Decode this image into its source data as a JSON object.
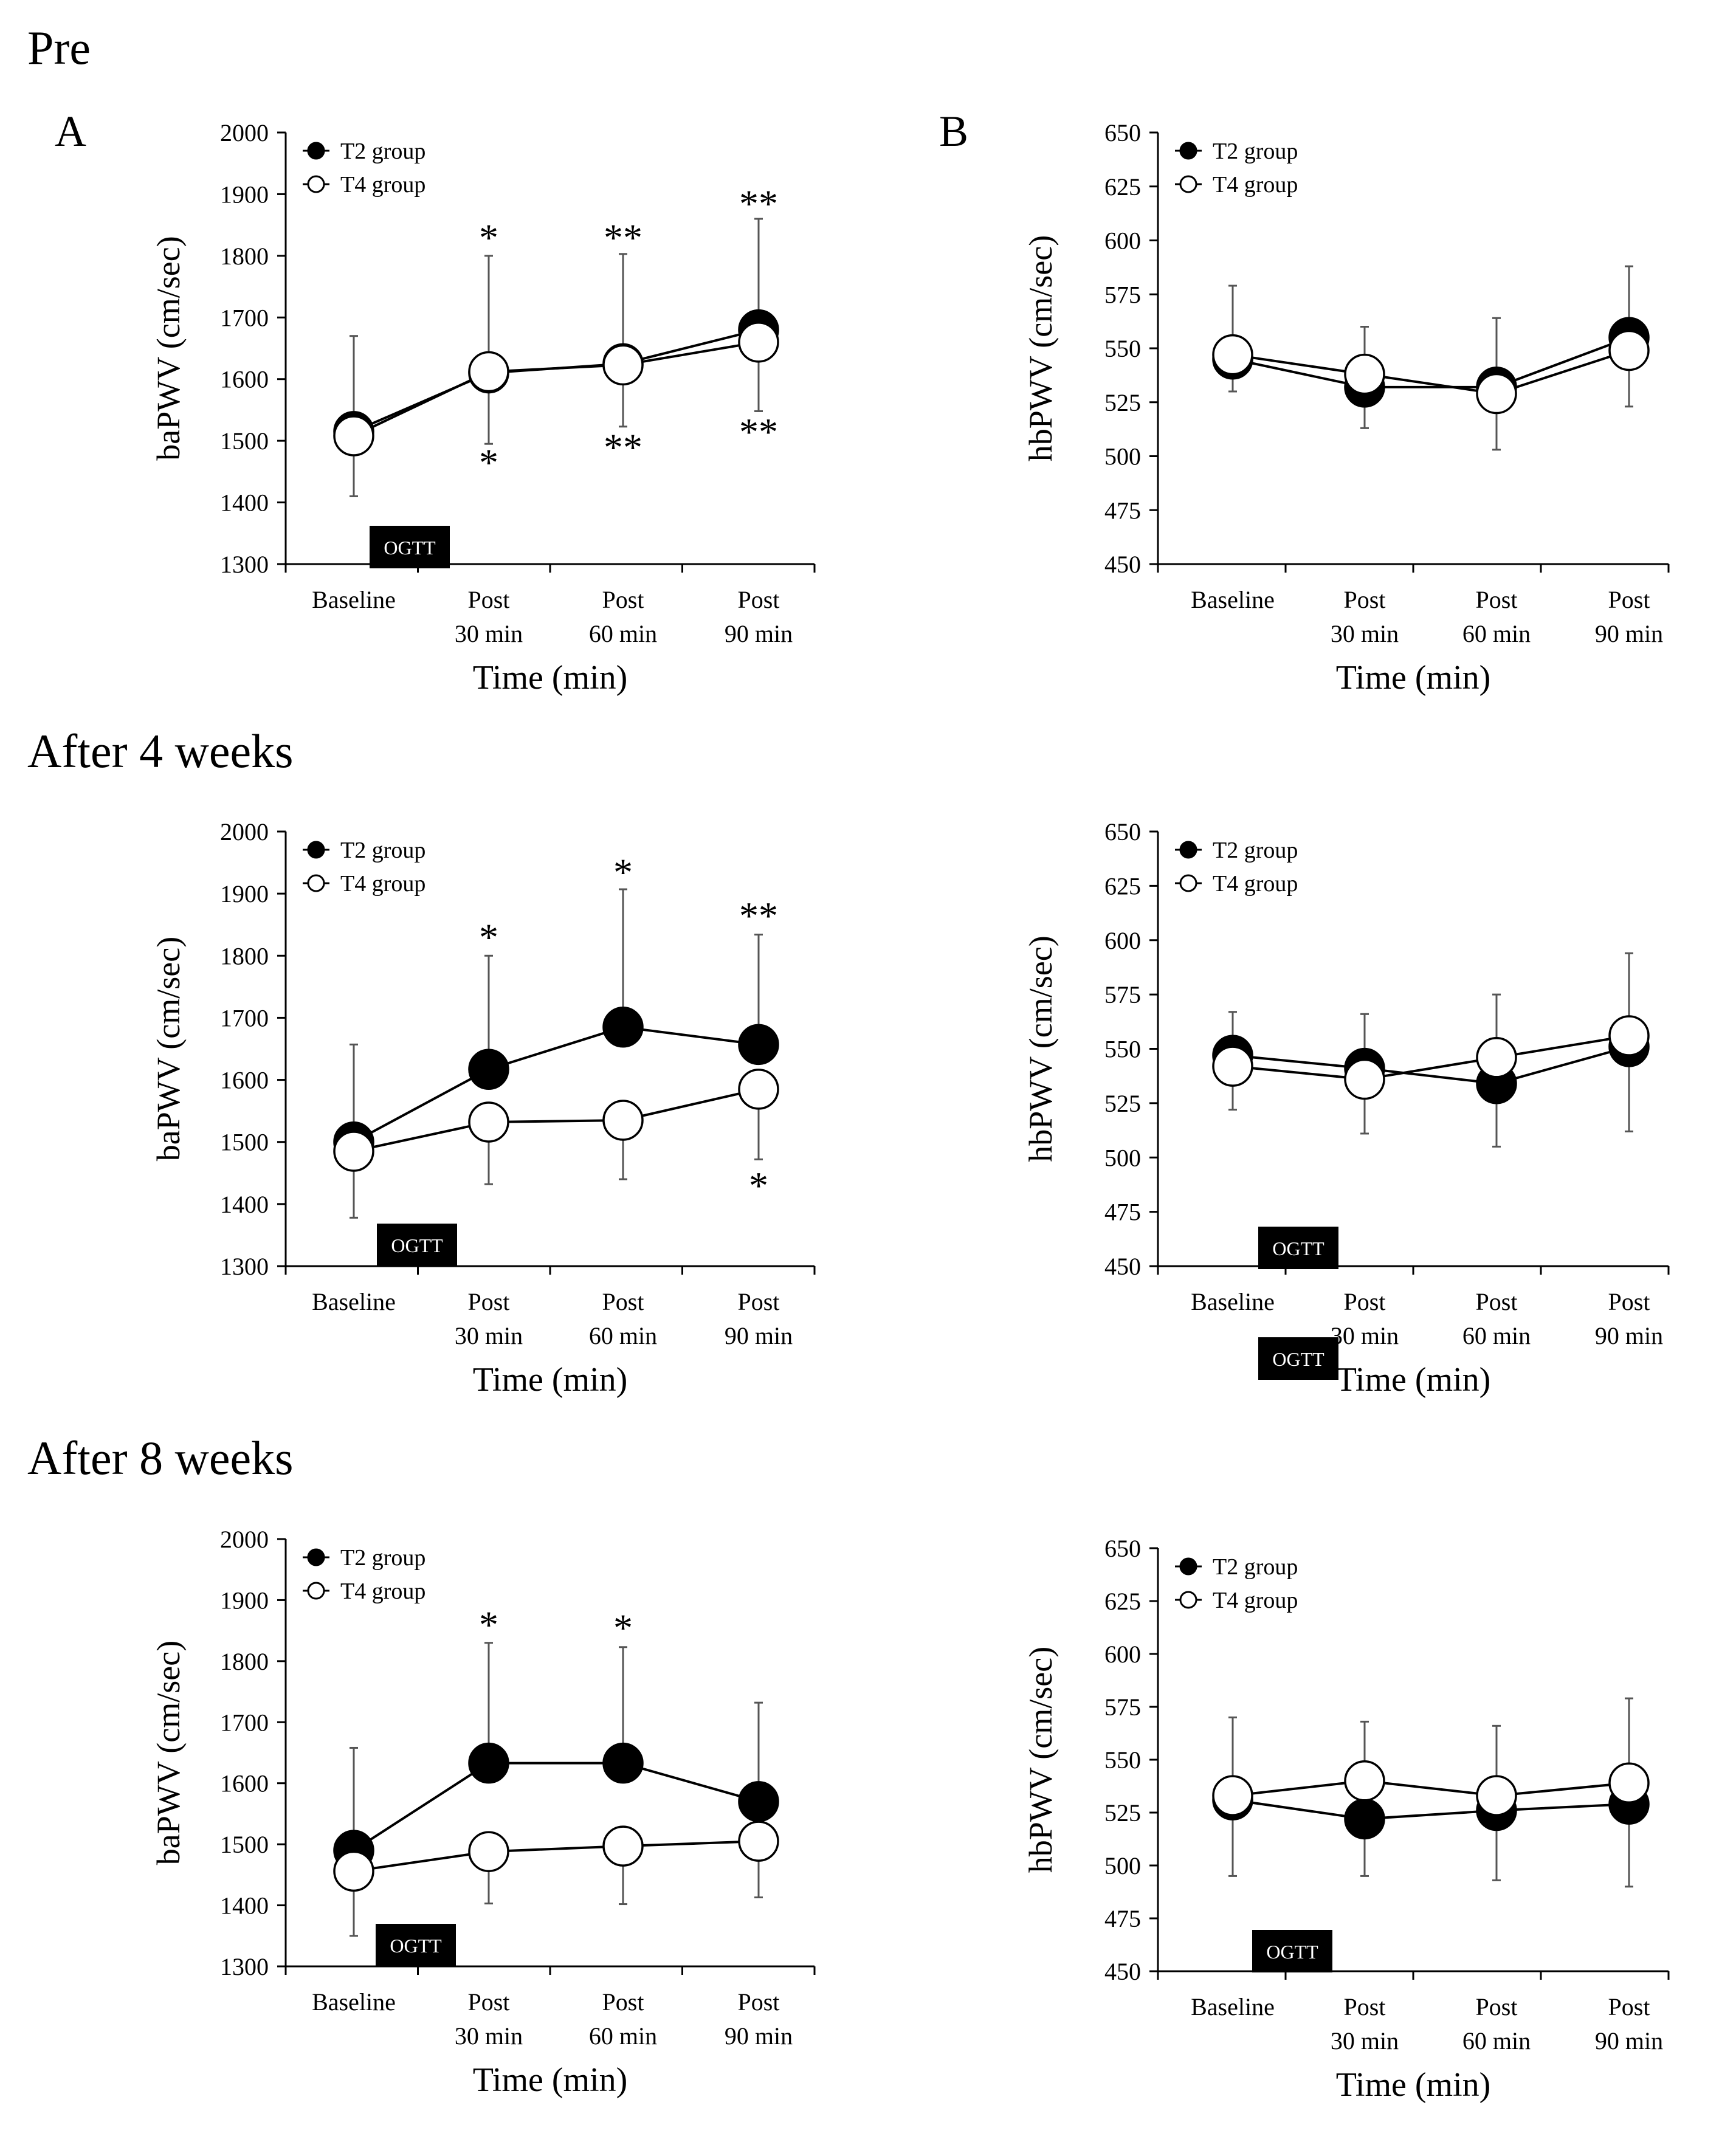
{
  "sections": [
    {
      "title": "Pre"
    },
    {
      "title": "After 4 weeks"
    },
    {
      "title": "After 8 weeks"
    }
  ],
  "panel_labels": [
    "A",
    "B"
  ],
  "legend": {
    "t2": "T2 group",
    "t4": "T4 group"
  },
  "ogtt_label": "OGTT",
  "x_axis": {
    "title": "Time (min)",
    "tick_lines": [
      [
        "Baseline",
        ""
      ],
      [
        "Post",
        "30 min"
      ],
      [
        "Post",
        "60 min"
      ],
      [
        "Post",
        "90 min"
      ]
    ]
  },
  "colors": {
    "t2_fill": "#000000",
    "t4_fill": "#ffffff",
    "axis": "#000000",
    "error_bar": "#555555"
  },
  "chart_data": [
    {
      "id": "pre-ba",
      "type": "line",
      "ylabel": "baPWV (cm/sec)",
      "ylim": [
        1300,
        2000
      ],
      "yticks": [
        1300,
        1400,
        1500,
        1600,
        1700,
        1800,
        1900,
        2000
      ],
      "categories": [
        "Baseline",
        "Post 30 min",
        "Post 60 min",
        "Post 90 min"
      ],
      "series": [
        {
          "name": "T2 group",
          "values": [
            1515,
            1610,
            1625,
            1680
          ],
          "err_up": [
            155,
            190,
            178,
            180
          ]
        },
        {
          "name": "T4 group",
          "values": [
            1508,
            1612,
            1623,
            1660
          ],
          "err_down": [
            98,
            117,
            100,
            112
          ]
        }
      ],
      "annotations": [
        {
          "category": 1,
          "y": 1830,
          "text": "*"
        },
        {
          "category": 2,
          "y": 1830,
          "text": "**"
        },
        {
          "category": 3,
          "y": 1885,
          "text": "**"
        },
        {
          "category": 1,
          "y": 1465,
          "text": "*"
        },
        {
          "category": 2,
          "y": 1490,
          "text": "**"
        },
        {
          "category": 3,
          "y": 1515,
          "text": "**"
        }
      ]
    },
    {
      "id": "pre-hb",
      "type": "line",
      "ylabel": "hbPWV (cm/sec)",
      "ylim": [
        450,
        650
      ],
      "yticks": [
        450,
        475,
        500,
        525,
        550,
        575,
        600,
        625,
        650
      ],
      "categories": [
        "Baseline",
        "Post 30 min",
        "Post 60 min",
        "Post 90 min"
      ],
      "series": [
        {
          "name": "T2 group",
          "values": [
            545,
            532,
            532,
            555
          ],
          "err_down": [
            15,
            19,
            29,
            32
          ]
        },
        {
          "name": "T4 group",
          "values": [
            547,
            538,
            529,
            549
          ],
          "err_up": [
            32,
            22,
            35,
            39
          ]
        }
      ],
      "annotations": []
    },
    {
      "id": "w4-ba",
      "type": "line",
      "ylabel": "baPWV (cm/sec)",
      "ylim": [
        1300,
        2000
      ],
      "yticks": [
        1300,
        1400,
        1500,
        1600,
        1700,
        1800,
        1900,
        2000
      ],
      "categories": [
        "Baseline",
        "Post 30 min",
        "Post 60 min",
        "Post 90 min"
      ],
      "series": [
        {
          "name": "T2 group",
          "values": [
            1500,
            1617,
            1685,
            1657
          ],
          "err_up": [
            157,
            183,
            222,
            177
          ]
        },
        {
          "name": "T4 group",
          "values": [
            1485,
            1532,
            1535,
            1585
          ],
          "err_down": [
            107,
            100,
            95,
            113
          ]
        }
      ],
      "annotations": [
        {
          "category": 1,
          "y": 1830,
          "text": "*"
        },
        {
          "category": 2,
          "y": 1935,
          "text": "*"
        },
        {
          "category": 3,
          "y": 1865,
          "text": "**"
        },
        {
          "category": 3,
          "y": 1430,
          "text": "*"
        }
      ]
    },
    {
      "id": "w4-hb",
      "type": "line",
      "ylabel": "hbPWV (cm/sec)",
      "ylim": [
        450,
        650
      ],
      "yticks": [
        450,
        475,
        500,
        525,
        550,
        575,
        600,
        625,
        650
      ],
      "categories": [
        "Baseline",
        "Post 30 min",
        "Post 60 min",
        "Post 90 min"
      ],
      "series": [
        {
          "name": "T2 group",
          "values": [
            547,
            541,
            534,
            551
          ],
          "err_up": [
            20,
            25,
            41,
            43
          ]
        },
        {
          "name": "T4 group",
          "values": [
            542,
            536,
            546,
            556
          ],
          "err_down": [
            20,
            25,
            41,
            44
          ]
        }
      ],
      "annotations": []
    },
    {
      "id": "w8-ba",
      "type": "line",
      "ylabel": "baPWV (cm/sec)",
      "ylim": [
        1300,
        2000
      ],
      "yticks": [
        1300,
        1400,
        1500,
        1600,
        1700,
        1800,
        1900,
        2000
      ],
      "categories": [
        "Baseline",
        "Post 30 min",
        "Post 60 min",
        "Post 90 min"
      ],
      "series": [
        {
          "name": "T2 group",
          "values": [
            1490,
            1633,
            1633,
            1570
          ],
          "err_up": [
            168,
            197,
            190,
            162
          ]
        },
        {
          "name": "T4 group",
          "values": [
            1456,
            1488,
            1497,
            1505
          ],
          "err_down": [
            106,
            85,
            95,
            92
          ]
        }
      ],
      "annotations": [
        {
          "category": 1,
          "y": 1860,
          "text": "*"
        },
        {
          "category": 2,
          "y": 1855,
          "text": "*"
        }
      ]
    },
    {
      "id": "w8-hb",
      "type": "line",
      "ylabel": "hbPWV (cm/sec)",
      "ylim": [
        450,
        650
      ],
      "yticks": [
        450,
        475,
        500,
        525,
        550,
        575,
        600,
        625,
        650
      ],
      "categories": [
        "Baseline",
        "Post 30 min",
        "Post 60 min",
        "Post 90 min"
      ],
      "series": [
        {
          "name": "T2 group",
          "values": [
            531,
            522,
            526,
            529
          ],
          "err_down": [
            36,
            27,
            33,
            39
          ]
        },
        {
          "name": "T4 group",
          "values": [
            533,
            540,
            533,
            539
          ],
          "err_up": [
            37,
            28,
            33,
            40
          ]
        }
      ],
      "annotations": []
    }
  ]
}
